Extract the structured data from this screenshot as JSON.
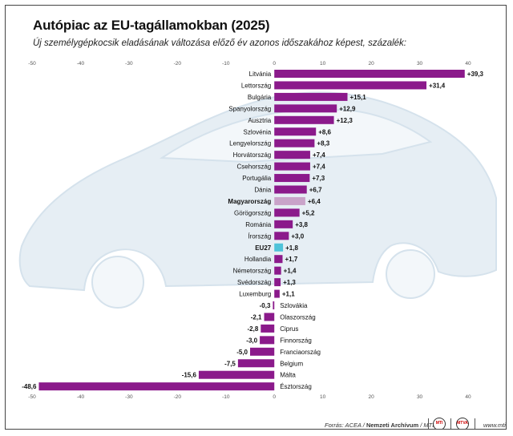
{
  "title": "Autópiac az EU-tagállamokban (2025)",
  "subtitle": "Új személygépkocsik eladásának változása előző év azonos időszakához képest, százalék:",
  "footer": {
    "source_prefix": "Forrás: ACEA / ",
    "source_bold": "Nemzeti Archívum",
    "source_suffix": " / MTI",
    "site": "www.mti.hu",
    "logo1": "MTI",
    "logo2": "MTVA"
  },
  "colors": {
    "bar": "#8b1a8b",
    "highlight_hungary": "#c9a3c9",
    "highlight_eu": "#4fc3d9",
    "background_car": "#e6eef4"
  },
  "chart_data": {
    "type": "bar",
    "orientation": "horizontal",
    "xlim": [
      -50,
      40
    ],
    "xticks": [
      -50,
      -40,
      -30,
      -20,
      -10,
      0,
      10,
      20,
      30,
      40
    ],
    "grid": false,
    "categories": [
      "Litvánia",
      "Lettország",
      "Bulgária",
      "Spanyolország",
      "Ausztria",
      "Szlovénia",
      "Lengyelország",
      "Horvátország",
      "Csehország",
      "Portugália",
      "Dánia",
      "Magyarország",
      "Görögország",
      "Románia",
      "Írország",
      "EU27",
      "Hollandia",
      "Németország",
      "Svédország",
      "Luxemburg",
      "Szlovákia",
      "Olaszország",
      "Ciprus",
      "Finnország",
      "Franciaország",
      "Belgium",
      "Málta",
      "Észtország"
    ],
    "values": [
      39.3,
      31.4,
      15.1,
      12.9,
      12.3,
      8.6,
      8.3,
      7.4,
      7.4,
      7.3,
      6.7,
      6.4,
      5.2,
      3.8,
      3.0,
      1.8,
      1.7,
      1.4,
      1.3,
      1.1,
      -0.3,
      -2.1,
      -2.8,
      -3.0,
      -5.0,
      -7.5,
      -15.6,
      -48.6
    ],
    "value_labels": [
      "+39,3",
      "+31,4",
      "+15,1",
      "+12,9",
      "+12,3",
      "+8,6",
      "+8,3",
      "+7,4",
      "+7,4",
      "+7,3",
      "+6,7",
      "+6,4",
      "+5,2",
      "+3,8",
      "+3,0",
      "+1,8",
      "+1,7",
      "+1,4",
      "+1,3",
      "+1,1",
      "-0,3",
      "-2,1",
      "-2,8",
      "-3,0",
      "-5,0",
      "-7,5",
      "-15,6",
      "-48,6"
    ],
    "tick_labels": [
      "-50",
      "-40",
      "-30",
      "-20",
      "-10",
      "0",
      "10",
      "20",
      "30",
      "40"
    ],
    "bold_categories": [
      "Magyarország",
      "EU27"
    ],
    "highlights": {
      "Magyarország": "highlight_hungary",
      "EU27": "highlight_eu"
    }
  }
}
